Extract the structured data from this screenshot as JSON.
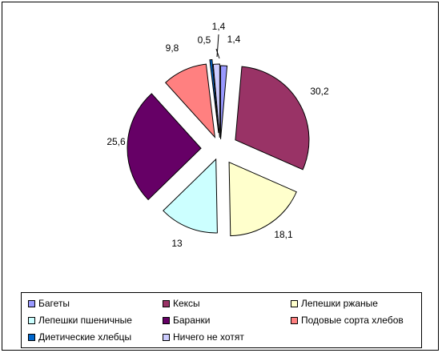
{
  "chart_data": {
    "type": "pie",
    "exploded": true,
    "categories": [
      "Багеты",
      "Кексы",
      "Лепешки ржаные",
      "Лепешки пшеничные",
      "Баранки",
      "Подовые сорта хлебов",
      "Диетические хлебцы",
      "Ничего не хотят"
    ],
    "values": [
      1.4,
      30.2,
      18.1,
      13,
      25.6,
      9.8,
      0.5,
      1.4
    ],
    "data_labels": [
      "1,4",
      "30,2",
      "18,1",
      "13",
      "25,6",
      "9,8",
      "0,5",
      "1,4"
    ],
    "colors": [
      "#9999ff",
      "#993366",
      "#ffffcc",
      "#ccffff",
      "#660066",
      "#ff8080",
      "#0066cc",
      "#ccccff"
    ],
    "legend_position": "bottom",
    "title": ""
  }
}
